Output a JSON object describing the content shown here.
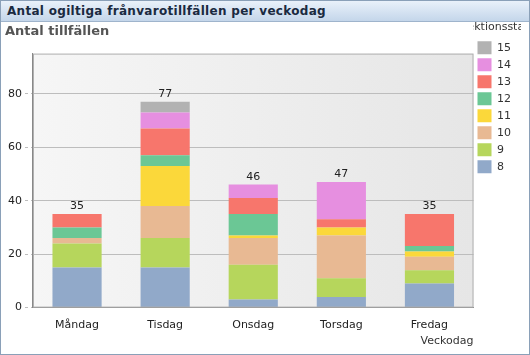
{
  "chart_data": {
    "type": "bar",
    "title": "Antal ogiltiga frånvarotillfällen per veckodag",
    "y_label": "Antal tillfällen",
    "x_label": "Veckodag",
    "legend_title": "Lektionsstart",
    "categories": [
      "Måndag",
      "Tisdag",
      "Onsdag",
      "Torsdag",
      "Fredag"
    ],
    "series": [
      {
        "name": "8",
        "color": "#91a9c9",
        "values": [
          15,
          15,
          3,
          4,
          9
        ]
      },
      {
        "name": "9",
        "color": "#b6d65c",
        "values": [
          9,
          11,
          13,
          7,
          5
        ]
      },
      {
        "name": "10",
        "color": "#e8b993",
        "values": [
          2,
          12,
          10,
          16,
          5
        ]
      },
      {
        "name": "11",
        "color": "#fbd83a",
        "values": [
          0,
          15,
          1,
          3,
          2
        ]
      },
      {
        "name": "12",
        "color": "#6bc795",
        "values": [
          4,
          4,
          8,
          0,
          2
        ]
      },
      {
        "name": "13",
        "color": "#f7766c",
        "values": [
          5,
          10,
          6,
          3,
          12
        ]
      },
      {
        "name": "14",
        "color": "#e68fe0",
        "values": [
          0,
          6,
          5,
          14,
          0
        ]
      },
      {
        "name": "15",
        "color": "#b2b2b2",
        "values": [
          0,
          4,
          0,
          0,
          0
        ]
      }
    ],
    "totals": [
      35,
      77,
      46,
      47,
      35
    ],
    "stacked": true,
    "ylim": [
      0,
      95
    ],
    "yticks": [
      0,
      20,
      40,
      60,
      80
    ],
    "grid": true,
    "legend": "right"
  }
}
